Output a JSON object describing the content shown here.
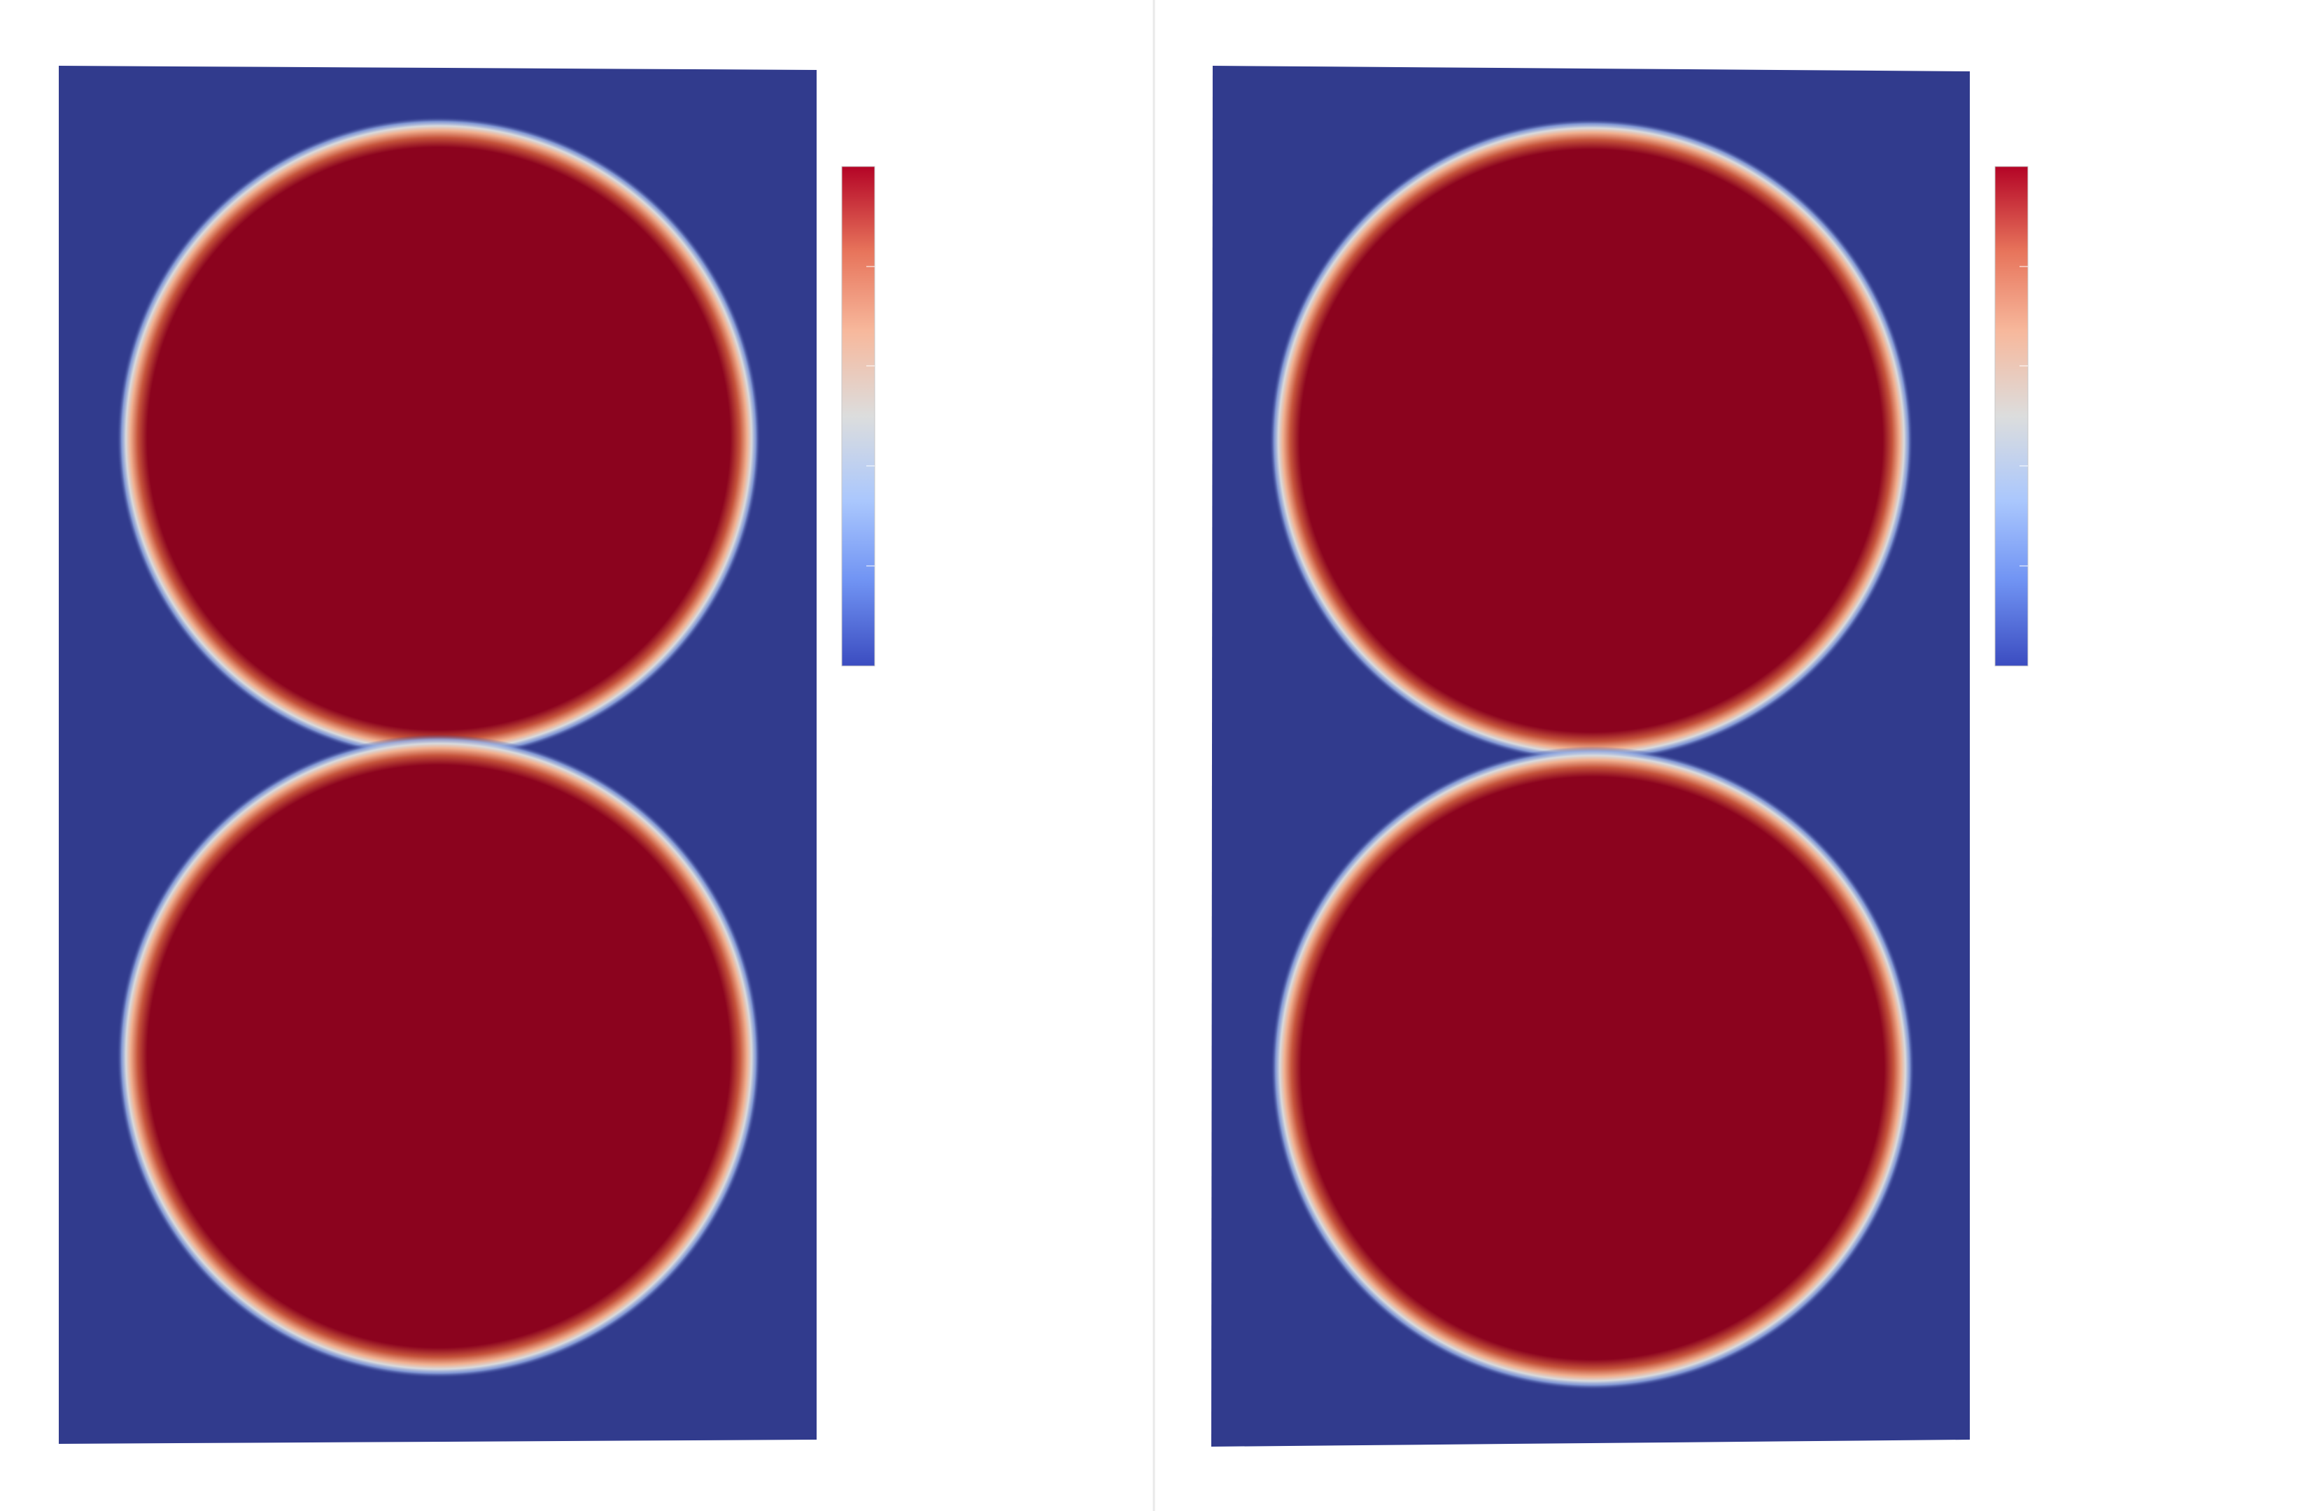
{
  "viewports": [
    {
      "id": "left",
      "domain_color": "#313b8d",
      "phase_color": "#8b031e",
      "colorbar": {
        "stops": [
          "#b40426",
          "#e7745b",
          "#f7b89c",
          "#dcdddd",
          "#aac7fd",
          "#7093f3",
          "#3b4cc0"
        ]
      }
    },
    {
      "id": "right",
      "domain_color": "#313b8d",
      "phase_color": "#8b031e",
      "colorbar": {
        "stops": [
          "#b40426",
          "#e7745b",
          "#f7b89c",
          "#dcdddd",
          "#aac7fd",
          "#7093f3",
          "#3b4cc0"
        ]
      }
    }
  ],
  "divider_color": "#e9e9e9"
}
